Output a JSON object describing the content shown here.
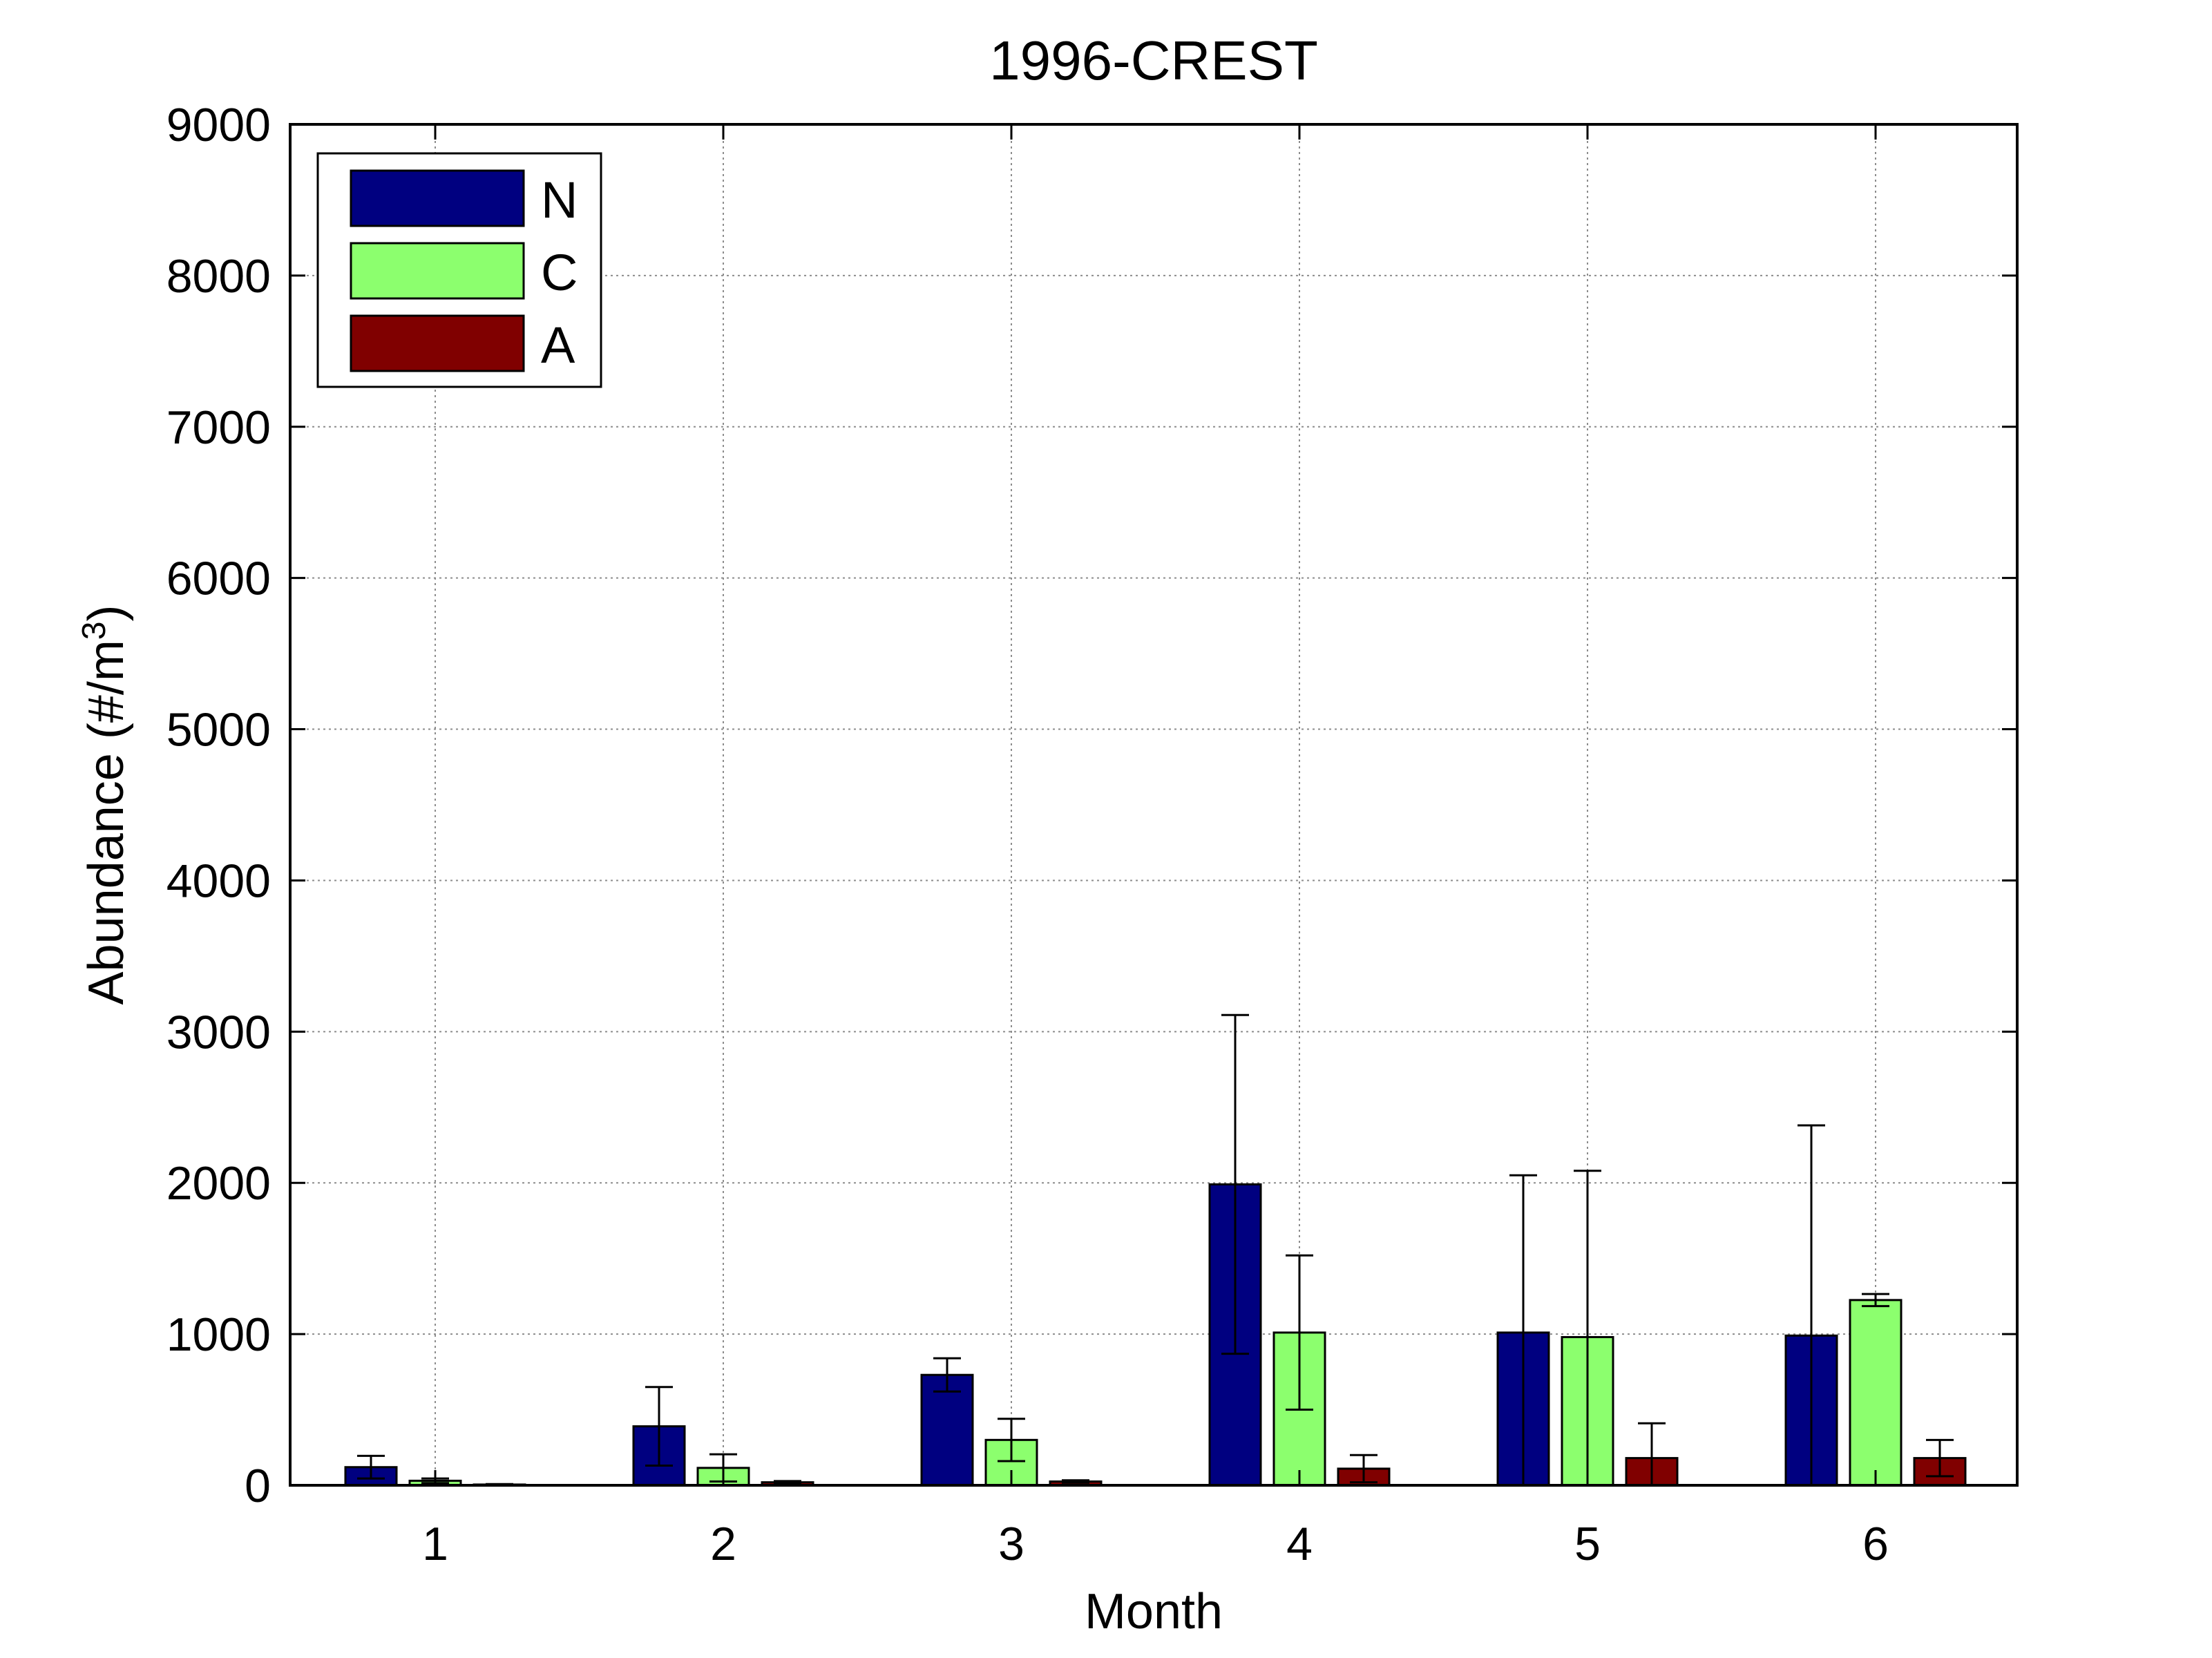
{
  "chart_data": {
    "type": "bar",
    "title": "1996-CREST",
    "xlabel": "Month",
    "ylabel": "Abundance (#/m",
    "ylabel_sup": "3",
    "ylabel_close": ")",
    "categories": [
      "1",
      "2",
      "3",
      "4",
      "5",
      "6"
    ],
    "yticks": [
      "0",
      "1000",
      "2000",
      "3000",
      "4000",
      "5000",
      "6000",
      "7000",
      "8000",
      "9000"
    ],
    "ylim": [
      0,
      9000
    ],
    "grid": true,
    "legend_position": "top-left",
    "series": [
      {
        "name": "N",
        "color": "#000080",
        "values": [
          120,
          390,
          730,
          1990,
          1010,
          990
        ],
        "errors": [
          75,
          260,
          110,
          1120,
          1040,
          1390
        ]
      },
      {
        "name": "C",
        "color": "#8cff6e",
        "values": [
          30,
          115,
          300,
          1010,
          980,
          1225
        ],
        "errors": [
          15,
          90,
          140,
          510,
          1100,
          40
        ]
      },
      {
        "name": "A",
        "color": "#800000",
        "values": [
          5,
          20,
          25,
          110,
          180,
          180
        ],
        "errors": [
          3,
          8,
          8,
          90,
          230,
          120
        ]
      }
    ]
  }
}
